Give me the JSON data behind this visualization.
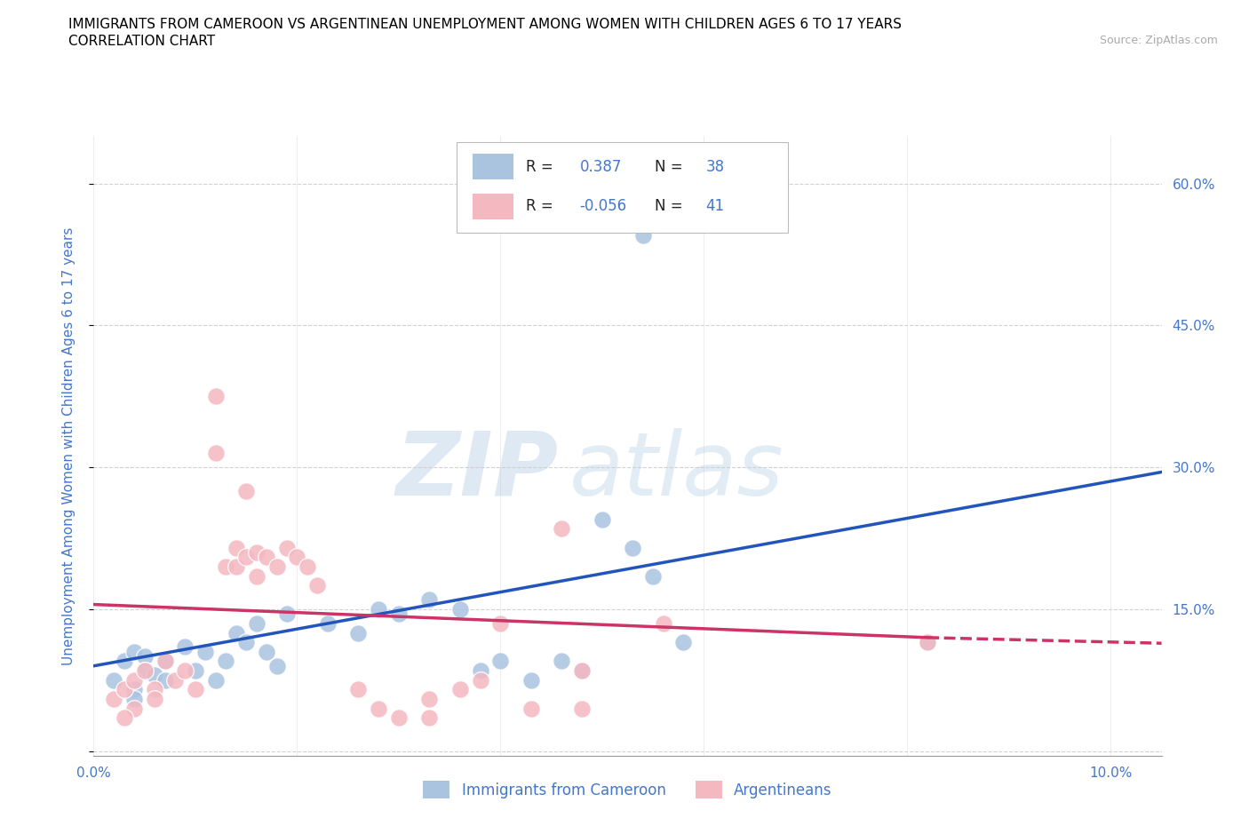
{
  "title_line1": "IMMIGRANTS FROM CAMEROON VS ARGENTINEAN UNEMPLOYMENT AMONG WOMEN WITH CHILDREN AGES 6 TO 17 YEARS",
  "title_line2": "CORRELATION CHART",
  "source_text": "Source: ZipAtlas.com",
  "ylabel": "Unemployment Among Women with Children Ages 6 to 17 years",
  "xlim": [
    0.0,
    0.105
  ],
  "ylim": [
    -0.005,
    0.65
  ],
  "xtick_positions": [
    0.0,
    0.02,
    0.04,
    0.06,
    0.08,
    0.1
  ],
  "xtick_labels": [
    "0.0%",
    "",
    "",
    "",
    "",
    "10.0%"
  ],
  "ytick_positions": [
    0.0,
    0.15,
    0.3,
    0.45,
    0.6
  ],
  "ytick_labels_right": [
    "",
    "15.0%",
    "30.0%",
    "45.0%",
    "60.0%"
  ],
  "legend_R_blue": "0.387",
  "legend_N_blue": "38",
  "legend_R_pink": "-0.056",
  "legend_N_pink": "41",
  "blue_scatter_color": "#aac4e0",
  "pink_scatter_color": "#f4b8c1",
  "line_blue_color": "#2255bb",
  "line_pink_color": "#cc3366",
  "blue_scatter": [
    [
      0.002,
      0.075
    ],
    [
      0.003,
      0.095
    ],
    [
      0.004,
      0.065
    ],
    [
      0.004,
      0.105
    ],
    [
      0.004,
      0.055
    ],
    [
      0.005,
      0.1
    ],
    [
      0.005,
      0.085
    ],
    [
      0.006,
      0.08
    ],
    [
      0.007,
      0.095
    ],
    [
      0.007,
      0.075
    ],
    [
      0.009,
      0.11
    ],
    [
      0.01,
      0.085
    ],
    [
      0.011,
      0.105
    ],
    [
      0.012,
      0.075
    ],
    [
      0.013,
      0.095
    ],
    [
      0.014,
      0.125
    ],
    [
      0.015,
      0.115
    ],
    [
      0.016,
      0.135
    ],
    [
      0.017,
      0.105
    ],
    [
      0.018,
      0.09
    ],
    [
      0.019,
      0.145
    ],
    [
      0.023,
      0.135
    ],
    [
      0.026,
      0.125
    ],
    [
      0.028,
      0.15
    ],
    [
      0.03,
      0.145
    ],
    [
      0.033,
      0.16
    ],
    [
      0.036,
      0.15
    ],
    [
      0.038,
      0.085
    ],
    [
      0.04,
      0.095
    ],
    [
      0.043,
      0.075
    ],
    [
      0.046,
      0.095
    ],
    [
      0.048,
      0.085
    ],
    [
      0.05,
      0.245
    ],
    [
      0.053,
      0.215
    ],
    [
      0.055,
      0.185
    ],
    [
      0.058,
      0.115
    ],
    [
      0.082,
      0.115
    ],
    [
      0.054,
      0.545
    ]
  ],
  "pink_scatter": [
    [
      0.002,
      0.055
    ],
    [
      0.003,
      0.065
    ],
    [
      0.004,
      0.045
    ],
    [
      0.004,
      0.075
    ],
    [
      0.003,
      0.035
    ],
    [
      0.005,
      0.085
    ],
    [
      0.006,
      0.065
    ],
    [
      0.006,
      0.055
    ],
    [
      0.007,
      0.095
    ],
    [
      0.008,
      0.075
    ],
    [
      0.009,
      0.085
    ],
    [
      0.01,
      0.065
    ],
    [
      0.012,
      0.375
    ],
    [
      0.012,
      0.315
    ],
    [
      0.013,
      0.195
    ],
    [
      0.014,
      0.215
    ],
    [
      0.014,
      0.195
    ],
    [
      0.015,
      0.275
    ],
    [
      0.015,
      0.205
    ],
    [
      0.016,
      0.185
    ],
    [
      0.016,
      0.21
    ],
    [
      0.017,
      0.205
    ],
    [
      0.018,
      0.195
    ],
    [
      0.019,
      0.215
    ],
    [
      0.02,
      0.205
    ],
    [
      0.021,
      0.195
    ],
    [
      0.022,
      0.175
    ],
    [
      0.026,
      0.065
    ],
    [
      0.028,
      0.045
    ],
    [
      0.03,
      0.035
    ],
    [
      0.033,
      0.055
    ],
    [
      0.036,
      0.065
    ],
    [
      0.038,
      0.075
    ],
    [
      0.04,
      0.135
    ],
    [
      0.043,
      0.045
    ],
    [
      0.046,
      0.235
    ],
    [
      0.048,
      0.085
    ],
    [
      0.056,
      0.135
    ],
    [
      0.082,
      0.115
    ],
    [
      0.033,
      0.035
    ],
    [
      0.048,
      0.045
    ]
  ],
  "blue_line": [
    [
      0.0,
      0.09
    ],
    [
      0.105,
      0.295
    ]
  ],
  "pink_line_solid": [
    [
      0.0,
      0.155
    ],
    [
      0.082,
      0.12
    ]
  ],
  "pink_line_dashed": [
    [
      0.082,
      0.12
    ],
    [
      0.105,
      0.114
    ]
  ],
  "grid_color": "#cccccc",
  "bg_color": "#ffffff",
  "axis_color": "#4477cc",
  "title_fontsize": 11,
  "tick_fontsize": 11
}
